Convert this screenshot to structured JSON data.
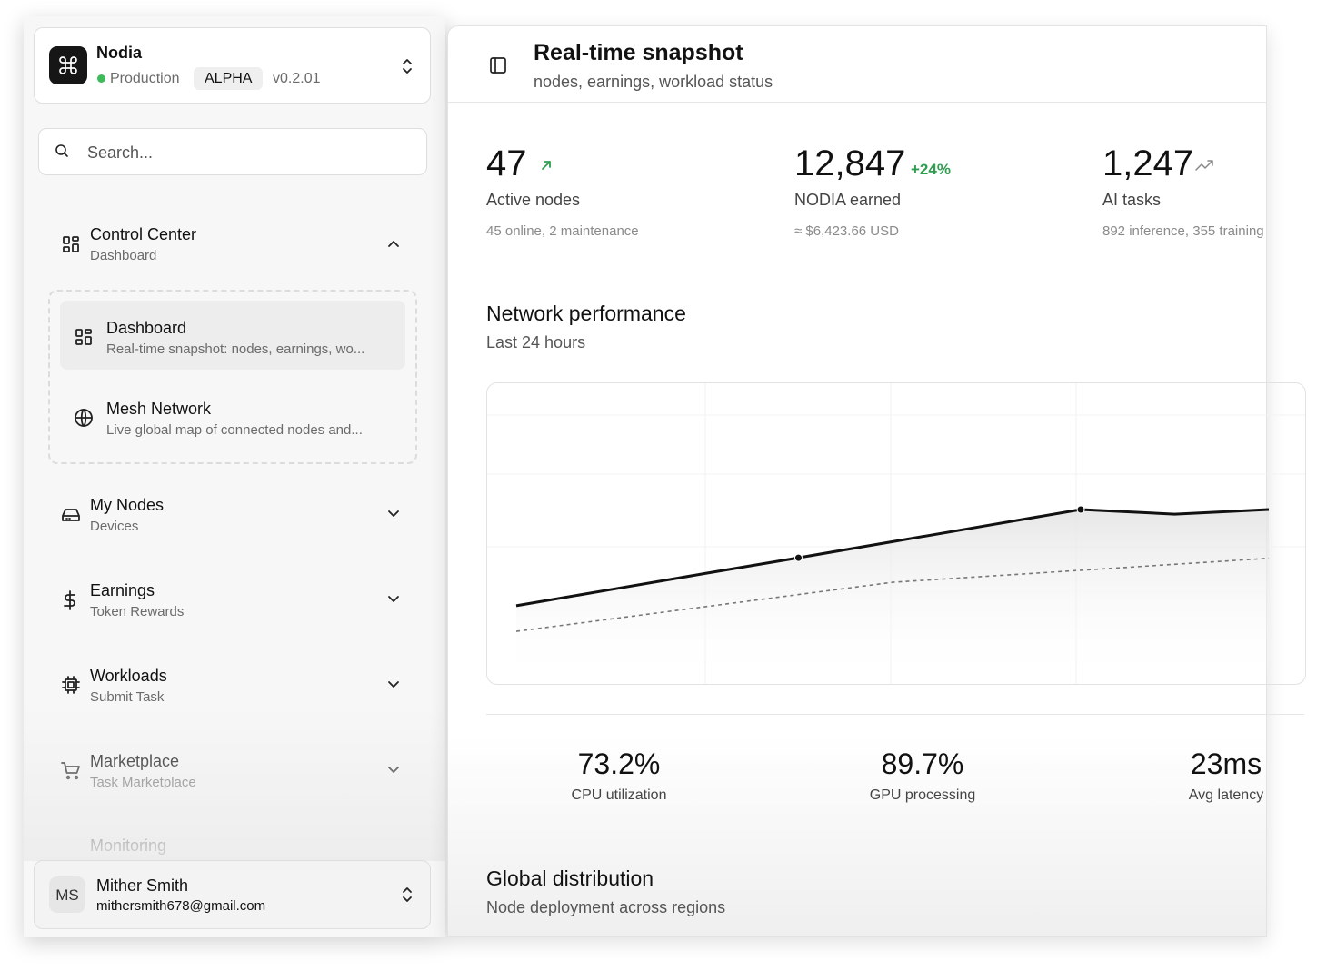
{
  "workspace": {
    "name": "Nodia",
    "environment": "Production",
    "badge": "ALPHA",
    "version": "v0.2.01"
  },
  "search": {
    "placeholder": "Search..."
  },
  "nav": [
    {
      "title": "Control Center",
      "subtitle": "Dashboard",
      "items": [
        {
          "title": "Dashboard",
          "description": "Real-time snapshot: nodes, earnings, wo..."
        },
        {
          "title": "Mesh Network",
          "description": "Live global map of connected nodes and..."
        }
      ]
    },
    {
      "title": "My Nodes",
      "subtitle": "Devices"
    },
    {
      "title": "Earnings",
      "subtitle": "Token Rewards"
    },
    {
      "title": "Workloads",
      "subtitle": "Submit Task"
    },
    {
      "title": "Marketplace",
      "subtitle": "Task Marketplace"
    },
    {
      "title": "Monitoring"
    }
  ],
  "user": {
    "initials": "MS",
    "name": "Mither Smith",
    "email": "mithersmith678@gmail.com"
  },
  "header": {
    "title": "Real-time snapshot",
    "subtitle": "nodes, earnings, workload status"
  },
  "stats": [
    {
      "value": "47",
      "label": "Active nodes",
      "detail": "45 online, 2 maintenance"
    },
    {
      "value": "12,847",
      "change": "+24%",
      "label": "NODIA earned",
      "detail": "≈ $6,423.66 USD"
    },
    {
      "value": "1,247",
      "label": "AI tasks",
      "detail": "892 inference, 355 training"
    }
  ],
  "performance": {
    "title": "Network performance",
    "subtitle": "Last 24 hours",
    "chart": {
      "type": "line",
      "ylim": [
        0,
        100
      ],
      "series": [
        {
          "color": "#111111",
          "values": [
            24.7,
            30.6,
            36.5,
            42.3,
            48.2,
            54.1,
            60,
            58.3,
            60
          ]
        },
        {
          "color": "#777777",
          "values": [
            15.3,
            19.8,
            24.3,
            28.8,
            33.3,
            35.5,
            37.7,
            39.9,
            42.1
          ]
        }
      ]
    }
  },
  "metrics": [
    {
      "value": "73.2%",
      "label": "CPU utilization"
    },
    {
      "value": "89.7%",
      "label": "GPU processing"
    },
    {
      "value": "23ms",
      "label": "Avg latency"
    }
  ],
  "distribution": {
    "title": "Global distribution",
    "subtitle": "Node deployment across regions"
  }
}
